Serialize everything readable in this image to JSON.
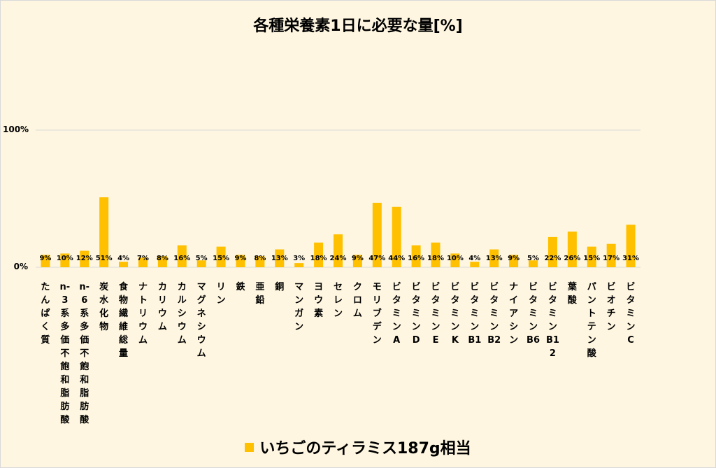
{
  "chart_data": {
    "type": "bar",
    "title": "各種栄養素1日に必要な量[%]",
    "categories": [
      "たんぱく質",
      "n-3系多価不飽和脂肪酸",
      "n-6系多価不飽和脂肪酸",
      "炭水化物",
      "食物繊維総量",
      "ナトリウム",
      "カリウム",
      "カルシウム",
      "マグネシウム",
      "リン",
      "鉄",
      "亜　鉛",
      "銅",
      "マンガン",
      "ヨウ素",
      "セレン",
      "クロム",
      "モリブデン",
      "ビタミンA",
      "ビタミンD",
      "ビタミンE",
      "ビタミンK",
      "ビタミンB1",
      "ビタミンB2",
      "ナイアシン",
      "ビタミンB6",
      "ビタミンB12",
      "葉　酸",
      "パントテン酸",
      "ビオチン",
      "ビタミンC"
    ],
    "series": [
      {
        "name": "いちごのティラミス187g相当",
        "values": [
          9,
          10,
          12,
          51,
          4,
          7,
          8,
          16,
          5,
          15,
          9,
          8,
          13,
          3,
          18,
          24,
          9,
          47,
          44,
          16,
          18,
          10,
          4,
          13,
          9,
          5,
          22,
          26,
          15,
          17,
          31
        ]
      }
    ],
    "data_labels": [
      "9%",
      "10%",
      "12%",
      "51%",
      "4%",
      "7%",
      "8%",
      "16%",
      "5%",
      "15%",
      "9%",
      "8%",
      "13%",
      "3%",
      "18%",
      "24%",
      "9%",
      "47%",
      "44%",
      "16%",
      "18%",
      "10%",
      "4%",
      "13%",
      "9%",
      "5%",
      "22%",
      "26%",
      "15%",
      "17%",
      "31%"
    ],
    "y_ticks": [
      "0%",
      "100%"
    ],
    "ylim": [
      0,
      100
    ],
    "grid": true,
    "legend_position": "bottom",
    "colors": {
      "bar": "#ffc000",
      "background": "#fef6e0",
      "gridline": "#d9d9d9"
    }
  }
}
